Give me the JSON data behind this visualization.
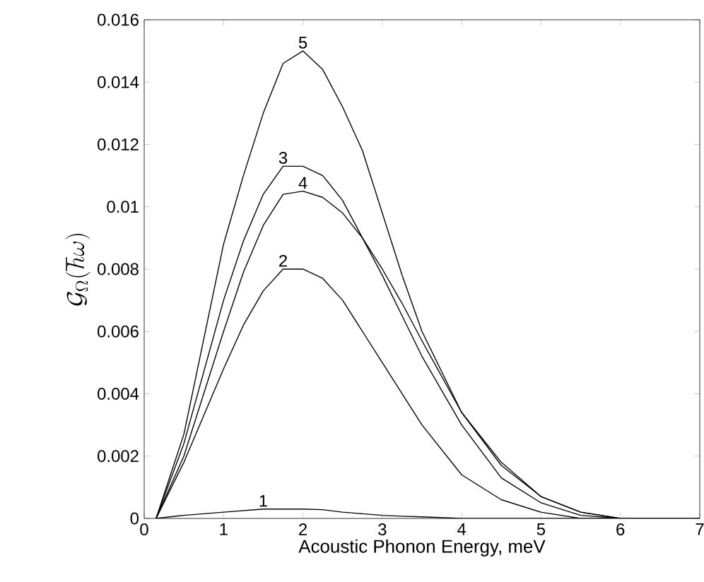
{
  "chart_data": {
    "type": "line",
    "xlabel": "Acoustic Phonon Energy,  meV",
    "ylabel": "\\mathcal{G}_{\\Omega}(\\hbar\\omega)",
    "xlim": [
      0,
      7
    ],
    "ylim": [
      0,
      0.016
    ],
    "xticks": [
      0,
      1,
      2,
      3,
      4,
      5,
      6,
      7
    ],
    "yticks": [
      0,
      0.002,
      0.004,
      0.006,
      0.008,
      0.01,
      0.012,
      0.014,
      0.016
    ],
    "grid": false,
    "legend": false,
    "marker": "none",
    "line_style": "solid",
    "x": [
      0.15,
      0.5,
      1,
      1.25,
      1.5,
      1.75,
      2,
      2.25,
      2.5,
      2.75,
      3,
      3.25,
      3.5,
      4,
      4.5,
      5,
      5.5,
      6,
      7
    ],
    "series": [
      {
        "name": "1",
        "color": "#000000",
        "values": [
          0,
          0.0001,
          0.0002,
          0.00025,
          0.0003,
          0.0003,
          0.0003,
          0.00028,
          0.0002,
          0.00015,
          0.0001,
          7e-05,
          5e-05,
          0,
          0,
          0,
          0,
          0,
          0
        ]
      },
      {
        "name": "2",
        "color": "#000000",
        "values": [
          0,
          0.0018,
          0.0048,
          0.0062,
          0.0073,
          0.008,
          0.008,
          0.0077,
          0.007,
          0.006,
          0.005,
          0.004,
          0.003,
          0.0014,
          0.0006,
          0.0002,
          0,
          0,
          0
        ]
      },
      {
        "name": "3",
        "color": "#000000",
        "values": [
          0,
          0.0024,
          0.007,
          0.0089,
          0.0104,
          0.0113,
          0.0113,
          0.011,
          0.0102,
          0.009,
          0.0078,
          0.0065,
          0.0052,
          0.003,
          0.0013,
          0.0005,
          0.0001,
          0,
          0
        ]
      },
      {
        "name": "4",
        "color": "#000000",
        "values": [
          0,
          0.002,
          0.006,
          0.0079,
          0.0094,
          0.0104,
          0.0105,
          0.0103,
          0.0098,
          0.009,
          0.008,
          0.0069,
          0.0057,
          0.0034,
          0.0018,
          0.0007,
          0.0002,
          0,
          0
        ]
      },
      {
        "name": "5",
        "color": "#000000",
        "values": [
          0,
          0.0027,
          0.0088,
          0.011,
          0.013,
          0.0146,
          0.015,
          0.0144,
          0.0132,
          0.0118,
          0.0098,
          0.0078,
          0.006,
          0.0034,
          0.0017,
          0.0007,
          0.0002,
          0,
          0
        ]
      }
    ]
  }
}
